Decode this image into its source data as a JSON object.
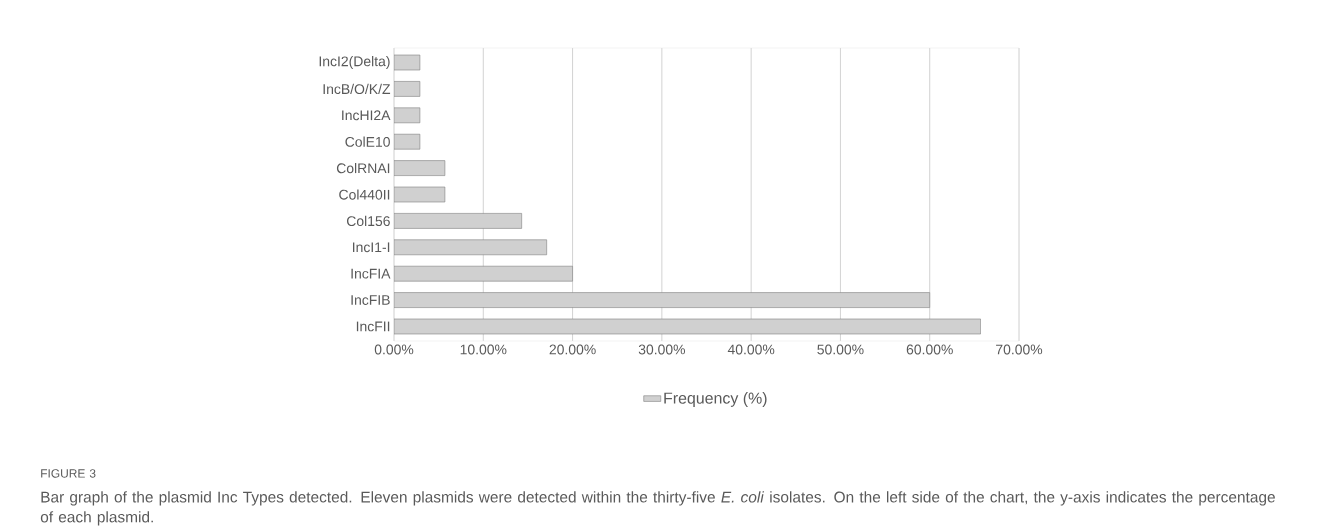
{
  "chart_data": {
    "type": "bar",
    "orientation": "horizontal",
    "categories": [
      "IncI2(Delta)",
      "IncB/O/K/Z",
      "IncHI2A",
      "ColE10",
      "ColRNAI",
      "Col440II",
      "Col156",
      "IncI1-I",
      "IncFIA",
      "IncFIB",
      "IncFII"
    ],
    "series": [
      {
        "name": "Frequency (%)",
        "color": "#d0d0d0",
        "values": [
          2.9,
          2.9,
          2.9,
          2.9,
          5.7,
          5.7,
          14.3,
          17.1,
          20,
          60,
          65.7
        ]
      }
    ],
    "xlim": [
      0,
      70
    ],
    "xticks": [
      {
        "value": 0,
        "label": "0.00%"
      },
      {
        "value": 10,
        "label": "10.00%"
      },
      {
        "value": 20,
        "label": "20.00%"
      },
      {
        "value": 30,
        "label": "30.00%"
      },
      {
        "value": 40,
        "label": "40.00%"
      },
      {
        "value": 50,
        "label": "50.00%"
      },
      {
        "value": 60,
        "label": "60.00%"
      },
      {
        "value": 70,
        "label": "70.00%"
      }
    ],
    "grid": "x",
    "legend": "bottom",
    "annotations": [
      "FIGURE 3",
      "Bar graph of the plasmid Inc Types detected. Eleven plasmids were detected within the thirty-five *E. coli* isolates. On the left side of the chart, the y-axis indicates the percentage of each plasmid."
    ]
  }
}
